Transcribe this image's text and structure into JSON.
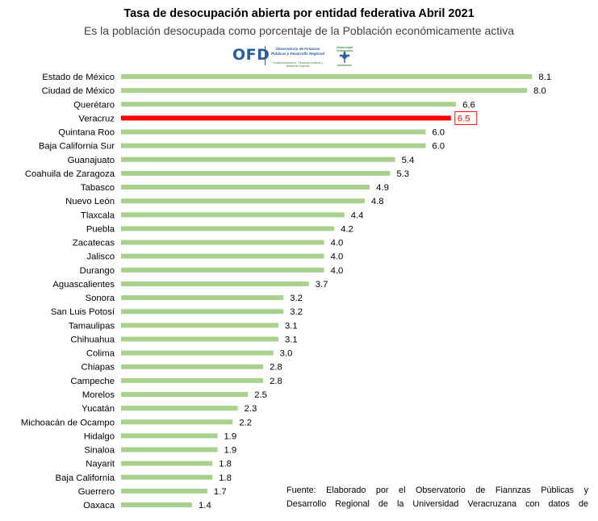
{
  "title": "Tasa de desocupación  abierta por entidad federativa Abril 2021",
  "subtitle": "Es la población desocupada como porcentaje de la Población económicamente activa",
  "logo": {
    "acronym": "OFD",
    "name": "Observatorio de Finanzas Públicas y Desarrollo Regional",
    "tagline": "Ciudad Académica · Finanzas públicas y desarrollo regional",
    "seal_label": "Universidad Veracruzana",
    "color": "#2a5d9f"
  },
  "footnote": {
    "line1": "Fuente: Elaborado por el Observatorio de Fiannzas Públicas y",
    "line2": "Desarrollo Regional de la Universidad Veracruzana con datos de"
  },
  "colors": {
    "bar": "#a9d18e",
    "highlight": "#ff0000"
  },
  "chart_data": {
    "type": "bar",
    "orientation": "horizontal",
    "title": "Tasa de desocupación  abierta por entidad federativa Abril 2021",
    "xlabel": "",
    "ylabel": "",
    "xlim": [
      0,
      8.3
    ],
    "grid": false,
    "legend": "none",
    "highlight": "Veracruz",
    "categories": [
      "Estado de México",
      "Ciudad de México",
      "Querétaro",
      "Veracruz",
      "Quintana Roo",
      "Baja California Sur",
      "Guanajuato",
      "Coahuila de Zaragoza",
      "Tabasco",
      "Nuevo León",
      "Tlaxcala",
      "Puebla",
      "Zacatecas",
      "Jalisco",
      "Durango",
      "Aguascalientes",
      "Sonora",
      "San Luis Potosí",
      "Tamaulipas",
      "Chihuahua",
      "Colima",
      "Chiapas",
      "Campeche",
      "Morelos",
      "Yucatán",
      "Michoacán de Ocampo",
      "Hidalgo",
      "Sinaloa",
      "Nayarit",
      "Baja California",
      "Guerrero",
      "Oaxaca"
    ],
    "values": [
      8.1,
      8.0,
      6.6,
      6.5,
      6.0,
      6.0,
      5.4,
      5.3,
      4.9,
      4.8,
      4.4,
      4.2,
      4.0,
      4.0,
      4.0,
      3.7,
      3.2,
      3.2,
      3.1,
      3.1,
      3.0,
      2.8,
      2.8,
      2.5,
      2.3,
      2.2,
      1.9,
      1.9,
      1.8,
      1.8,
      1.7,
      1.4
    ],
    "value_labels": [
      "8.1",
      "8.0",
      "6.6",
      "6.5",
      "6.0",
      "6.0",
      "5.4",
      "5.3",
      "4.9",
      "4.8",
      "4.4",
      "4.2",
      "4.0",
      "4.0",
      "4.0",
      "3.7",
      "3.2",
      "3.2",
      "3.1",
      "3.1",
      "3.0",
      "2.8",
      "2.8",
      "2.5",
      "2.3",
      "2.2",
      "1.9",
      "1.9",
      "1.8",
      "1.8",
      "1.7",
      "1.4"
    ]
  }
}
